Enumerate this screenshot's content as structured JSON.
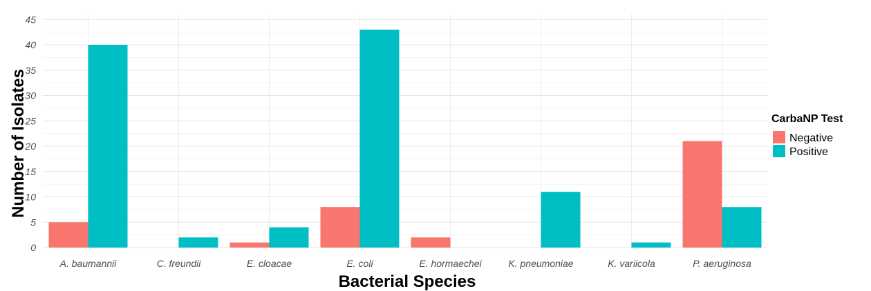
{
  "chart_data": {
    "type": "bar",
    "title": "",
    "xlabel": "Bacterial Species",
    "ylabel": "Number of Isolates",
    "ylim": [
      0,
      46
    ],
    "yticks": [
      0,
      5,
      10,
      15,
      20,
      25,
      30,
      35,
      40,
      45
    ],
    "grid": true,
    "legend_position": "right",
    "legend_title": "CarbaNP Test",
    "categories": [
      "A. baumannii",
      "C. freundii",
      "E. cloacae",
      "E. coli",
      "E. hormaechei",
      "K. pneumoniae",
      "K. variicola",
      "P. aeruginosa"
    ],
    "series": [
      {
        "name": "Negative",
        "color": "#F8766D",
        "values": [
          5,
          0,
          1,
          8,
          2,
          0,
          0,
          21
        ]
      },
      {
        "name": "Positive",
        "color": "#00BFC4",
        "values": [
          40,
          2,
          4,
          43,
          0,
          11,
          1,
          8
        ]
      }
    ]
  }
}
